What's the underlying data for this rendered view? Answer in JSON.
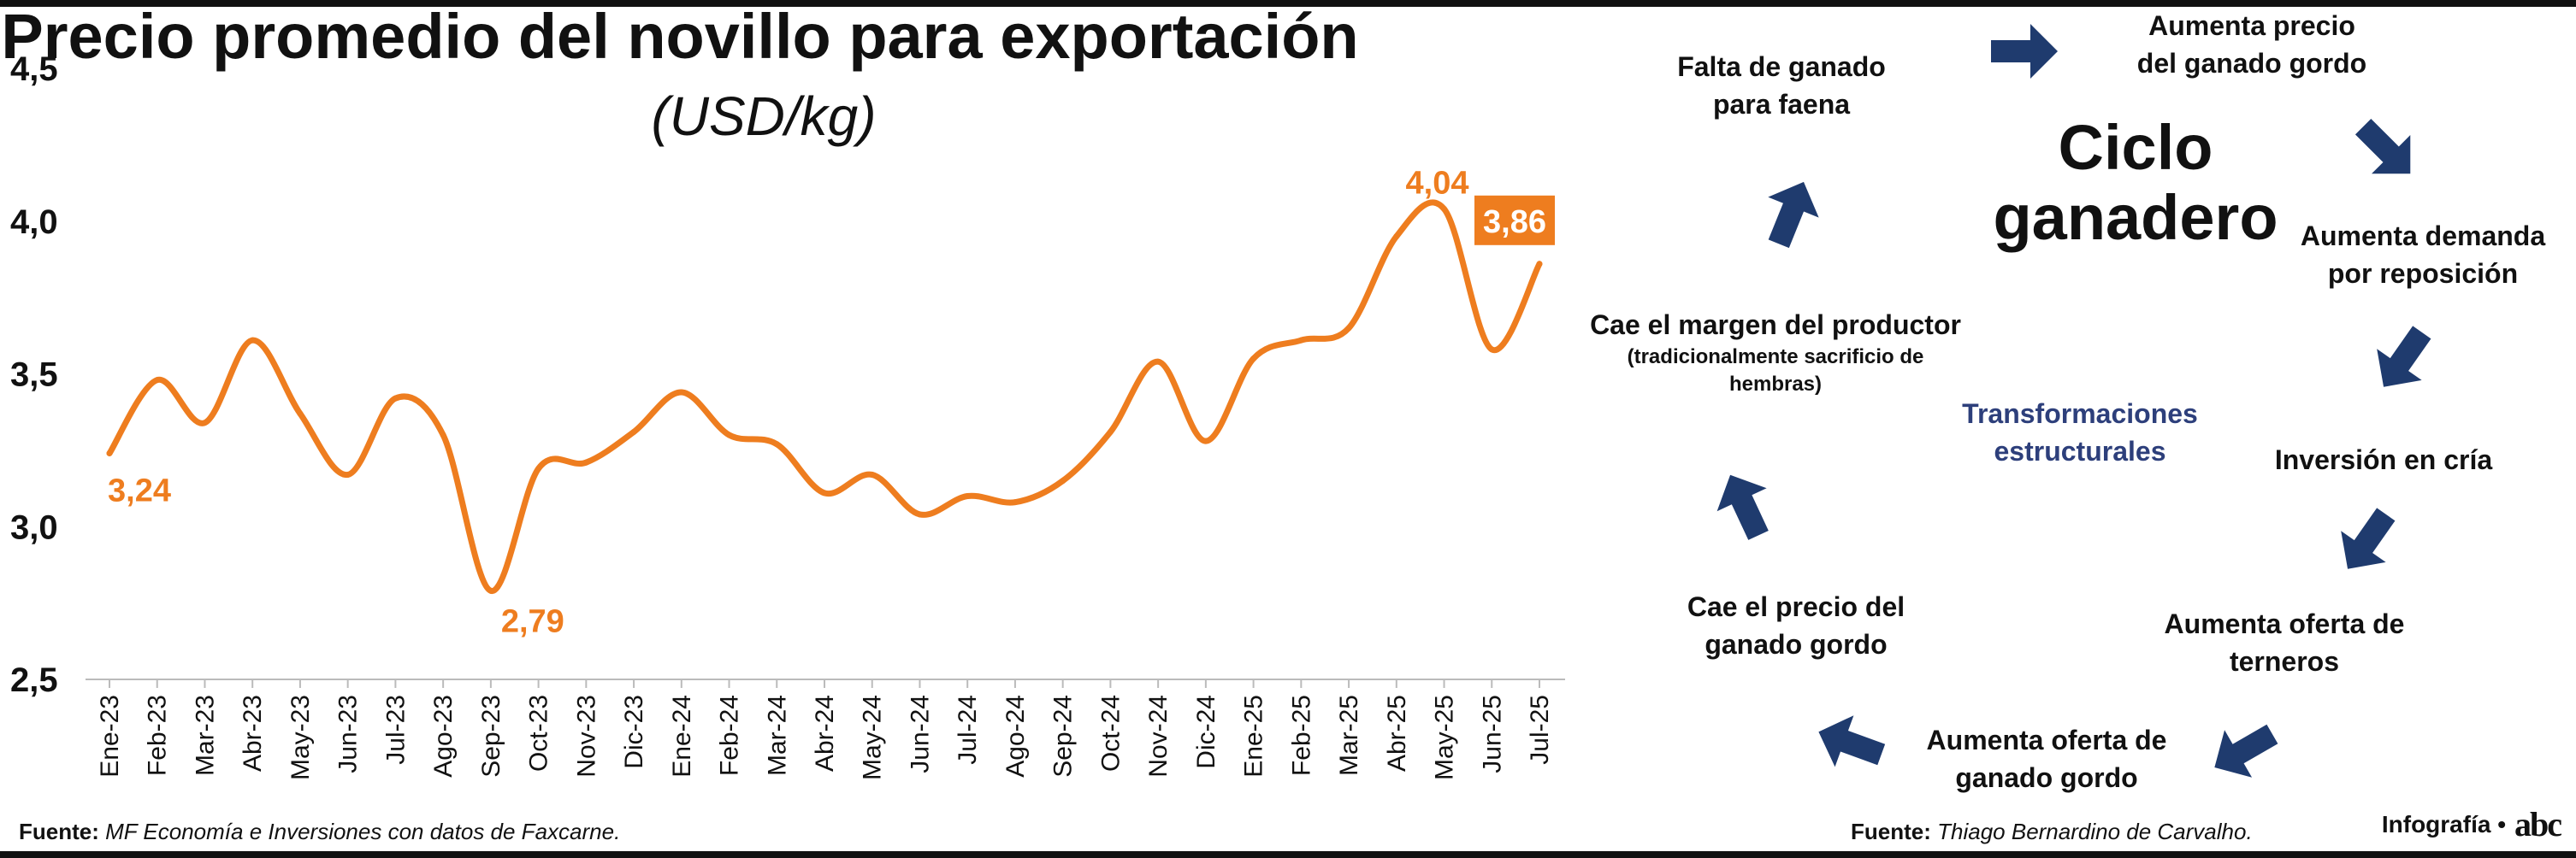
{
  "chart_data": {
    "type": "line",
    "title": "Precio promedio del novillo para exportación",
    "subtitle": "(USD/kg)",
    "xlabel": "",
    "ylabel": "",
    "ylim": [
      2.5,
      4.5
    ],
    "yticks": [
      "2,5",
      "3,0",
      "3,5",
      "4,0",
      "4,5"
    ],
    "grid": false,
    "color": "#ee7d1f",
    "categories": [
      "Ene-23",
      "Feb-23",
      "Mar-23",
      "Abr-23",
      "May-23",
      "Jun-23",
      "Jul-23",
      "Ago-23",
      "Sep-23",
      "Oct-23",
      "Nov-23",
      "Dic-23",
      "Ene-24",
      "Feb-24",
      "Mar-24",
      "Abr-24",
      "May-24",
      "Jun-24",
      "Jul-24",
      "Ago-24",
      "Sep-24",
      "Oct-24",
      "Nov-24",
      "Dic-24",
      "Ene-25",
      "Feb-25",
      "Mar-25",
      "Abr-25",
      "May-25",
      "Jun-25",
      "Jul-25"
    ],
    "values": [
      3.24,
      3.48,
      3.34,
      3.61,
      3.37,
      3.17,
      3.42,
      3.3,
      2.79,
      3.19,
      3.21,
      3.31,
      3.44,
      3.3,
      3.27,
      3.11,
      3.17,
      3.04,
      3.1,
      3.08,
      3.15,
      3.31,
      3.54,
      3.28,
      3.55,
      3.61,
      3.65,
      3.95,
      4.04,
      3.58,
      3.86
    ],
    "annotations": [
      {
        "index": 0,
        "text": "3,24"
      },
      {
        "index": 8,
        "text": "2,79"
      },
      {
        "index": 28,
        "text": "4,04"
      },
      {
        "index": 30,
        "text": "3,86",
        "boxed": true
      }
    ]
  },
  "sources": {
    "left_label": "Fuente:",
    "left_text": "MF Economía e Inversiones con datos de Faxcarne.",
    "right_label": "Fuente:",
    "right_text": "Thiago Bernardino de Carvalho."
  },
  "credit": {
    "label": "Infografía •",
    "logo": "abc"
  },
  "cycle": {
    "title_line1": "Ciclo",
    "title_line2": "ganadero",
    "center_line1": "Transformaciones",
    "center_line2": "estructurales",
    "arrow_color": "#1f3b6e",
    "steps": [
      {
        "line1": "Falta de ganado",
        "line2": "para faena"
      },
      {
        "line1": "Aumenta precio",
        "line2": "del ganado gordo"
      },
      {
        "line1": "Aumenta demanda",
        "line2": "por reposición"
      },
      {
        "line1": "Inversión en cría",
        "line2": ""
      },
      {
        "line1": "Aumenta oferta de",
        "line2": "terneros"
      },
      {
        "line1": "Aumenta oferta de",
        "line2": "ganado gordo"
      },
      {
        "line1": "Cae el precio del",
        "line2": "ganado gordo"
      },
      {
        "line1": "Cae el margen del productor",
        "line2": "(tradicionalmente sacrificio de",
        "line3": "hembras)"
      }
    ]
  }
}
